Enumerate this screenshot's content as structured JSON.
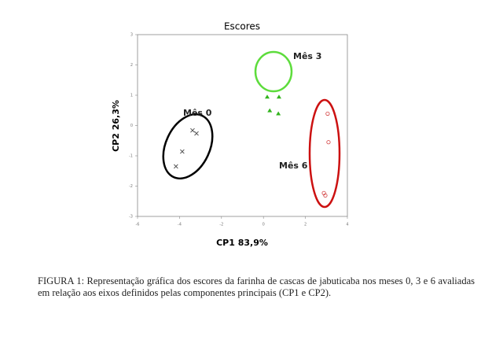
{
  "chart_data": {
    "type": "scatter",
    "title": "Escores",
    "x_label": "CP1 83,9%",
    "y_label": "CP2 26,3%",
    "xlim": [
      -6,
      4
    ],
    "xticks": [
      -6,
      -4,
      -2,
      0,
      2,
      4
    ],
    "ylim": [
      -3,
      3
    ],
    "yticks": [
      -3,
      -2,
      -1,
      0,
      1,
      2,
      3
    ],
    "series": [
      {
        "name": "Mês 0",
        "color": "#444444",
        "marker": "x",
        "x": [
          -3.38,
          -3.19,
          -3.87,
          -4.17
        ],
        "values": [
          -0.16,
          -0.26,
          -0.86,
          -1.35
        ]
      },
      {
        "name": "Mês 3",
        "color": "#33b41e",
        "marker": "triangle",
        "x": [
          0.18,
          0.74,
          0.3,
          0.71
        ],
        "values": [
          0.94,
          0.94,
          0.49,
          0.39
        ]
      },
      {
        "name": "Mês 6",
        "color": "#d23c3c",
        "marker": "circle",
        "x": [
          3.06,
          3.1,
          2.88,
          2.95
        ],
        "values": [
          0.39,
          -0.55,
          -2.23,
          -2.31
        ]
      }
    ]
  },
  "caption": "FIGURA 1: Representação gráfica dos escores da farinha de cascas de jabuticaba nos meses 0, 3 e 6 avaliadas em relação aos eixos definidos pelas componentes principais (CP1 e CP2)."
}
